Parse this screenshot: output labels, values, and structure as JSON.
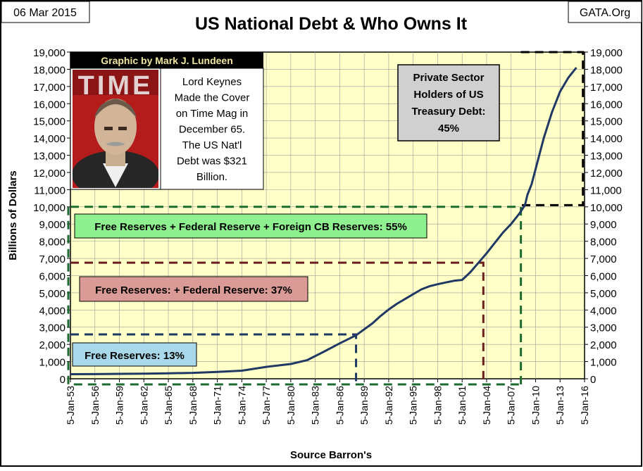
{
  "header": {
    "date": "06 Mar 2015",
    "source_site": "GATA.Org"
  },
  "inset": {
    "credit": "Graphic by Mark J. Lundeen",
    "magazine_name": "TIME",
    "caption_lines": [
      "Lord Keynes",
      "Made the Cover",
      "on Time Mag in",
      "December 65.",
      "The US Nat'l",
      "Debt was $321",
      "Billion."
    ]
  },
  "colors": {
    "plot_bg": "#ffffc8",
    "grid": "#9a9a9a",
    "line": "#1f3864",
    "green": "#1e6b30",
    "brown": "#6b1f1f",
    "navy": "#1f3864",
    "black": "#000000",
    "box_green": "#8ff08f",
    "box_pink": "#da9a96",
    "box_blue": "#a9d8ea",
    "box_gray": "#d0d0d0"
  },
  "chart_data": {
    "type": "line",
    "title": "US National Debt & Who Owns It",
    "xlabel": "Source Barron's",
    "ylabel": "Billions of Dollars",
    "ylim": [
      0,
      19000
    ],
    "yticks": [
      0,
      1000,
      2000,
      3000,
      4000,
      5000,
      6000,
      7000,
      8000,
      9000,
      10000,
      11000,
      12000,
      13000,
      14000,
      15000,
      16000,
      17000,
      18000,
      19000
    ],
    "xlim": [
      1953,
      2016
    ],
    "xticks": [
      {
        "year": 1953,
        "label": "5-Jan-53"
      },
      {
        "year": 1956,
        "label": "5-Jan-56"
      },
      {
        "year": 1959,
        "label": "5-Jan-59"
      },
      {
        "year": 1962,
        "label": "5-Jan-62"
      },
      {
        "year": 1965,
        "label": "5-Jan-65"
      },
      {
        "year": 1968,
        "label": "5-Jan-68"
      },
      {
        "year": 1971,
        "label": "5-Jan-71"
      },
      {
        "year": 1974,
        "label": "5-Jan-74"
      },
      {
        "year": 1977,
        "label": "5-Jan-77"
      },
      {
        "year": 1980,
        "label": "5-Jan-80"
      },
      {
        "year": 1983,
        "label": "5-Jan-83"
      },
      {
        "year": 1986,
        "label": "5-Jan-86"
      },
      {
        "year": 1989,
        "label": "5-Jan-89"
      },
      {
        "year": 1992,
        "label": "5-Jan-92"
      },
      {
        "year": 1995,
        "label": "5-Jan-95"
      },
      {
        "year": 1998,
        "label": "5-Jan-98"
      },
      {
        "year": 2001,
        "label": "5-Jan-01"
      },
      {
        "year": 2004,
        "label": "5-Jan-04"
      },
      {
        "year": 2007,
        "label": "5-Jan-07"
      },
      {
        "year": 2010,
        "label": "5-Jan-10"
      },
      {
        "year": 2013,
        "label": "5-Jan-13"
      },
      {
        "year": 2016,
        "label": "5-Jan-16"
      }
    ],
    "grid": true,
    "series": [
      {
        "x": [
          1953,
          1956,
          1959,
          1962,
          1965,
          1968,
          1971,
          1974,
          1977,
          1980,
          1982,
          1984,
          1986,
          1988,
          1990,
          1991,
          1992,
          1993,
          1994,
          1995,
          1996,
          1997,
          1998,
          1999,
          2000,
          2001,
          2002,
          2003,
          2004,
          2005,
          2006,
          2007,
          2008,
          2008.7,
          2009,
          2009.5,
          2010,
          2011,
          2012,
          2013,
          2014,
          2015
        ],
        "y": [
          265,
          272,
          285,
          298,
          318,
          345,
          400,
          470,
          690,
          860,
          1080,
          1560,
          2060,
          2530,
          3220,
          3650,
          4030,
          4360,
          4640,
          4920,
          5200,
          5380,
          5500,
          5600,
          5700,
          5750,
          6200,
          6750,
          7300,
          7900,
          8500,
          9000,
          9600,
          10100,
          10700,
          11300,
          12200,
          14000,
          15500,
          16700,
          17500,
          18100
        ]
      }
    ],
    "annotations": [
      {
        "id": "private",
        "label_lines": [
          "Private Sector",
          "Holders of US",
          "Treasury Debt:",
          "45%"
        ],
        "x_start": 2008.2,
        "x_end": 2015.8,
        "y_low": 10100,
        "y_high": 19000
      },
      {
        "id": "free_fed_foreign",
        "label": "Free Reserves + Federal Reserve + Foreign CB Reserves: 55%",
        "x_start": 1953,
        "x_end": 2008.2,
        "y_top": 10000
      },
      {
        "id": "free_fed",
        "label": "Free Reserves: + Federal Reserve: 37%",
        "x_start": 1953,
        "x_end": 2003.6,
        "y_top": 6750
      },
      {
        "id": "free",
        "label": "Free Reserves: 13%",
        "x_start": 1953,
        "x_end": 1988,
        "y_top": 2580
      }
    ]
  }
}
